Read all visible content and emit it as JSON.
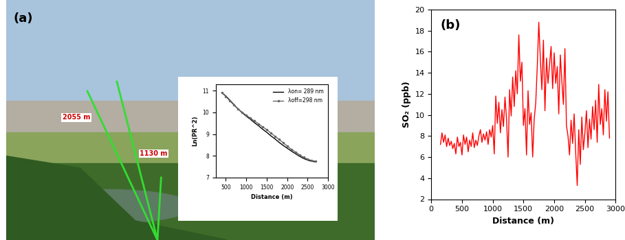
{
  "photo": {
    "label": "(a)",
    "distance_labels": [
      "2055 m",
      "1130 m"
    ]
  },
  "chart_data": [
    {
      "type": "line",
      "x_label": "Distance (m)",
      "y_label": "Ln(PR^2)",
      "x": [
        400,
        500,
        600,
        700,
        800,
        900,
        1000,
        1100,
        1200,
        1300,
        1400,
        1500,
        1600,
        1700,
        1800,
        1900,
        2000,
        2100,
        2200,
        2300,
        2400,
        2500,
        2600,
        2700
      ],
      "series": [
        {
          "name": "λon= 289 nm",
          "color": "#000000",
          "line_style": "solid",
          "marker": "none",
          "values": [
            10.9,
            10.75,
            10.55,
            10.35,
            10.15,
            9.98,
            9.82,
            9.68,
            9.52,
            9.38,
            9.22,
            9.08,
            8.92,
            8.78,
            8.62,
            8.48,
            8.35,
            8.22,
            8.1,
            7.98,
            7.88,
            7.8,
            7.75,
            7.72
          ]
        },
        {
          "name": "λoff=298 nm",
          "color": "#666666",
          "line_style": "solid",
          "marker": "point",
          "values": [
            10.9,
            10.73,
            10.52,
            10.33,
            10.15,
            10.0,
            9.86,
            9.73,
            9.6,
            9.47,
            9.33,
            9.2,
            9.05,
            8.9,
            8.75,
            8.6,
            8.45,
            8.3,
            8.18,
            8.05,
            7.93,
            7.85,
            7.78,
            7.75
          ]
        }
      ],
      "xlim": [
        250,
        3000
      ],
      "xticks": [
        500,
        1000,
        1500,
        2000,
        2500,
        3000
      ],
      "ylim": [
        7,
        11.3
      ],
      "yticks": [
        7,
        8,
        9,
        10,
        11
      ],
      "legend": "upper right"
    },
    {
      "type": "line",
      "annotations": [
        "(b)"
      ],
      "x_label": "Distance (m)",
      "y_label": "SO₂ (ppb)",
      "x": [
        150,
        175,
        200,
        225,
        250,
        275,
        300,
        325,
        350,
        375,
        400,
        425,
        450,
        475,
        500,
        525,
        550,
        575,
        600,
        625,
        650,
        675,
        700,
        725,
        750,
        775,
        800,
        825,
        850,
        875,
        900,
        925,
        950,
        975,
        1000,
        1025,
        1050,
        1075,
        1100,
        1125,
        1150,
        1175,
        1200,
        1225,
        1250,
        1275,
        1300,
        1325,
        1350,
        1375,
        1400,
        1425,
        1450,
        1475,
        1500,
        1525,
        1550,
        1575,
        1600,
        1625,
        1650,
        1675,
        1700,
        1725,
        1750,
        1775,
        1800,
        1825,
        1850,
        1875,
        1900,
        1925,
        1950,
        1975,
        2000,
        2025,
        2050,
        2075,
        2100,
        2125,
        2150,
        2175,
        2200,
        2225,
        2250,
        2275,
        2300,
        2325,
        2350,
        2375,
        2400,
        2425,
        2450,
        2475,
        2500,
        2525,
        2550,
        2575,
        2600,
        2625,
        2650,
        2675,
        2700,
        2725,
        2750,
        2775,
        2800,
        2825,
        2850,
        2875,
        2900
      ],
      "series": [
        {
          "name": "SO₂",
          "color": "#ff0000",
          "line_style": "solid",
          "marker": "none",
          "values": [
            7.2,
            8.3,
            7.4,
            8.1,
            7.0,
            7.8,
            7.1,
            7.5,
            6.8,
            7.3,
            6.3,
            7.9,
            7.0,
            7.4,
            6.2,
            8.1,
            7.2,
            7.9,
            6.5,
            7.6,
            7.0,
            8.3,
            6.9,
            7.6,
            7.1,
            8.0,
            8.6,
            7.4,
            8.2,
            7.6,
            8.4,
            7.2,
            8.6,
            7.9,
            9.0,
            6.3,
            11.8,
            9.2,
            11.2,
            8.3,
            10.5,
            8.9,
            11.7,
            9.6,
            6.0,
            12.4,
            9.9,
            13.6,
            10.8,
            14.2,
            12.0,
            17.6,
            13.2,
            15.0,
            9.0,
            10.6,
            6.2,
            12.3,
            9.1,
            10.2,
            6.0,
            9.6,
            11.1,
            14.6,
            18.8,
            15.3,
            12.4,
            17.1,
            10.4,
            15.4,
            13.0,
            14.8,
            16.5,
            12.5,
            15.9,
            13.0,
            14.6,
            10.1,
            15.7,
            13.2,
            11.0,
            16.3,
            9.0,
            8.0,
            6.2,
            9.5,
            7.3,
            10.1,
            6.5,
            3.3,
            8.6,
            5.3,
            9.8,
            6.7,
            8.3,
            10.4,
            6.9,
            9.6,
            7.7,
            10.8,
            8.6,
            11.4,
            7.4,
            12.9,
            9.1,
            10.6,
            8.1,
            12.4,
            9.4,
            12.2,
            7.8
          ]
        }
      ],
      "xlim": [
        0,
        3000
      ],
      "xticks": [
        0,
        500,
        1000,
        1500,
        2000,
        2500,
        3000
      ],
      "ylim": [
        2,
        20
      ],
      "yticks": [
        2,
        4,
        6,
        8,
        10,
        12,
        14,
        16,
        18,
        20
      ]
    }
  ]
}
